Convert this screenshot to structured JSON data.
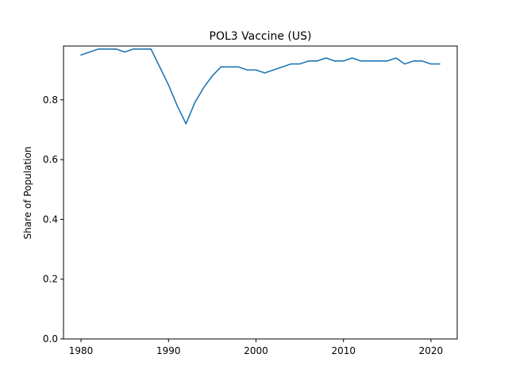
{
  "chart_data": {
    "type": "line",
    "title": "POL3 Vaccine (US)",
    "xlabel": "",
    "ylabel": "Share of Population",
    "xlim": [
      1978,
      2023
    ],
    "ylim": [
      0,
      0.98
    ],
    "xticks": [
      1980,
      1990,
      2000,
      2010,
      2020
    ],
    "yticks": [
      0.0,
      0.2,
      0.4,
      0.6,
      0.8
    ],
    "ytick_labels": [
      "0.0",
      "0.2",
      "0.4",
      "0.6",
      "0.8"
    ],
    "grid": false,
    "line_color": "#1f77b4",
    "series": [
      {
        "x": [
          1980,
          1981,
          1982,
          1983,
          1984,
          1985,
          1986,
          1987,
          1988,
          1989,
          1990,
          1991,
          1992,
          1993,
          1994,
          1995,
          1996,
          1997,
          1998,
          1999,
          2000,
          2001,
          2002,
          2003,
          2004,
          2005,
          2006,
          2007,
          2008,
          2009,
          2010,
          2011,
          2012,
          2013,
          2014,
          2015,
          2016,
          2017,
          2018,
          2019,
          2020,
          2021
        ],
        "y": [
          0.95,
          0.96,
          0.97,
          0.97,
          0.97,
          0.96,
          0.97,
          0.97,
          0.97,
          0.91,
          0.85,
          0.78,
          0.72,
          0.79,
          0.84,
          0.88,
          0.91,
          0.91,
          0.91,
          0.9,
          0.9,
          0.89,
          0.9,
          0.91,
          0.92,
          0.92,
          0.93,
          0.93,
          0.94,
          0.93,
          0.93,
          0.94,
          0.93,
          0.93,
          0.93,
          0.93,
          0.94,
          0.92,
          0.93,
          0.93,
          0.92,
          0.92
        ]
      }
    ]
  }
}
